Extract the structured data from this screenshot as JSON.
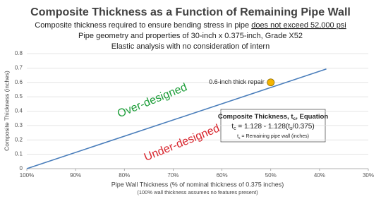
{
  "chart_data": {
    "type": "line",
    "title": "Composite Thickness as a Function of Remaining Pipe Wall",
    "subtitle_lines": [
      [
        "Composite thickness required to ensure bending stress in pipe ",
        "does not exceed 52,000 psi"
      ],
      [
        "Pipe geometry and properties of 30-inch x 0.375-inch, Grade X52"
      ],
      [
        "Elastic analysis with no consideration of intern"
      ]
    ],
    "xlabel": "Pipe Wall Thickness (% of nominal thickness of 0.375 inches)",
    "xlabel_note": "(100% wall thickness assumes no features present)",
    "ylabel": "Composite Thickness (inches)",
    "xlim": [
      100,
      30
    ],
    "xticks": [
      {
        "value": 100,
        "label": "100%"
      },
      {
        "value": 90,
        "label": "90%"
      },
      {
        "value": 80,
        "label": "80%"
      },
      {
        "value": 70,
        "label": "70%"
      },
      {
        "value": 60,
        "label": "60%"
      },
      {
        "value": 50,
        "label": "50%"
      },
      {
        "value": 40,
        "label": "40%"
      },
      {
        "value": 30,
        "label": "30%"
      }
    ],
    "ylim": [
      0,
      0.8
    ],
    "yticks": [
      0,
      0.1,
      0.2,
      0.3,
      0.4,
      0.5,
      0.6,
      0.7,
      0.8
    ],
    "grid": true,
    "series": [
      {
        "color": "#4a7ebb",
        "x": [
          100,
          38.6
        ],
        "values": [
          0,
          0.693
        ]
      }
    ],
    "points": [
      {
        "color": "#f5b400",
        "x": 50,
        "value": 0.6,
        "label": "0.6-inch thick repair"
      }
    ],
    "annotations": [
      {
        "text": "Over-designed",
        "color": "#1e9e3a"
      },
      {
        "text": "Under-designed",
        "color": "#d8262e"
      }
    ],
    "equation": {
      "heading": [
        "Composite Thickness, ",
        "t",
        "c",
        ", Equation"
      ],
      "formula": [
        "t",
        "c",
        " = 1.128 - 1.128(t",
        "s",
        "/0.375)"
      ],
      "note": [
        "t",
        "s",
        " = Remaining pipe wall (inches)"
      ]
    }
  }
}
